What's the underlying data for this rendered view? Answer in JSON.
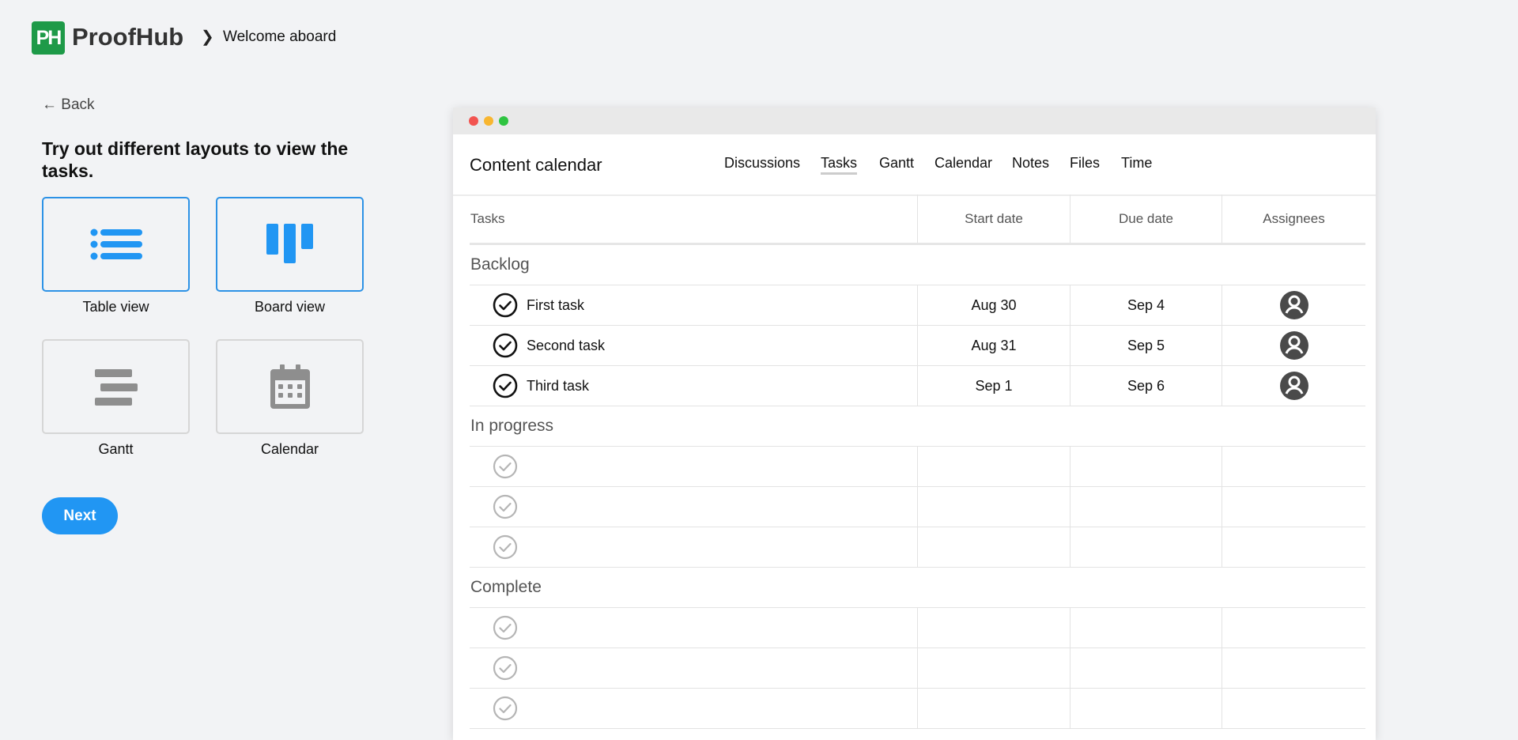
{
  "header": {
    "logo_text": "PH",
    "brand": "ProofHub",
    "breadcrumb": "Welcome aboard"
  },
  "left": {
    "back_label": "Back",
    "heading": "Try out different layouts to view the tasks.",
    "layouts": [
      {
        "label": "Table view",
        "icon": "list-icon",
        "selected": true
      },
      {
        "label": "Board view",
        "icon": "board-icon",
        "selected": true
      },
      {
        "label": "Gantt",
        "icon": "gantt-icon",
        "selected": false
      },
      {
        "label": "Calendar",
        "icon": "calendar-icon",
        "selected": false
      }
    ],
    "next_label": "Next"
  },
  "colors": {
    "accent": "#2196f3",
    "brand": "#1e9a48",
    "unselected_icon": "#8e8e8e"
  },
  "window": {
    "project": "Content calendar",
    "tabs": [
      "Discussions",
      "Tasks",
      "Gantt",
      "Calendar",
      "Notes",
      "Files",
      "Time"
    ],
    "active_tab": "Tasks",
    "columns": [
      "Tasks",
      "Start date",
      "Due date",
      "Assignees"
    ],
    "groups": [
      {
        "name": "Backlog",
        "rows": [
          {
            "task": "First task",
            "start": "Aug 30",
            "due": "Sep 4",
            "assignee": true
          },
          {
            "task": "Second task",
            "start": "Aug 31",
            "due": "Sep 5",
            "assignee": true
          },
          {
            "task": "Third task",
            "start": "Sep 1",
            "due": "Sep 6",
            "assignee": true
          }
        ]
      },
      {
        "name": "In progress",
        "rows": [
          {
            "task": "",
            "start": "",
            "due": "",
            "assignee": false
          },
          {
            "task": "",
            "start": "",
            "due": "",
            "assignee": false
          },
          {
            "task": "",
            "start": "",
            "due": "",
            "assignee": false
          }
        ]
      },
      {
        "name": "Complete",
        "rows": [
          {
            "task": "",
            "start": "",
            "due": "",
            "assignee": false
          },
          {
            "task": "",
            "start": "",
            "due": "",
            "assignee": false
          },
          {
            "task": "",
            "start": "",
            "due": "",
            "assignee": false
          }
        ]
      }
    ]
  }
}
